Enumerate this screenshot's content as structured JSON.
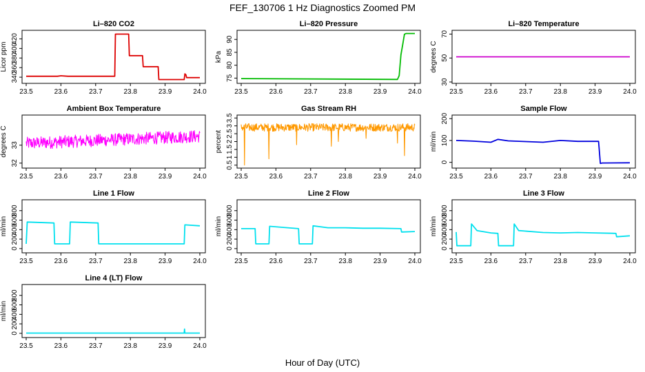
{
  "figure": {
    "title": "FEF_130706  1 Hz Diagnostics Zoomed PM",
    "xlabel": "Hour of Day (UTC)"
  },
  "chart_data": [
    {
      "id": "li820-co2",
      "type": "line",
      "title": "Li–820 CO2",
      "ylabel": "Licor ppm",
      "xlim": [
        23.5,
        24.0
      ],
      "ylim": [
        330,
        435
      ],
      "xticks": [
        "23.5",
        "23.6",
        "23.7",
        "23.8",
        "23.9",
        "24.0"
      ],
      "yticks": [
        340,
        360,
        380,
        400,
        420
      ],
      "color": "#dd0000",
      "series": [
        {
          "x": [
            23.5,
            23.59,
            23.6,
            23.62,
            23.755,
            23.757,
            23.795,
            23.797,
            23.835,
            23.837,
            23.88,
            23.882,
            23.955,
            23.957,
            23.96,
            23.962,
            24.0
          ],
          "y": [
            342,
            342,
            343,
            342,
            342,
            430,
            430,
            385,
            385,
            362,
            362,
            335,
            335,
            347,
            345,
            339,
            339
          ]
        }
      ]
    },
    {
      "id": "li820-pressure",
      "type": "line",
      "title": "Li–820 Pressure",
      "ylabel": "kPa",
      "xlim": [
        23.5,
        24.0
      ],
      "ylim": [
        73.5,
        93
      ],
      "xticks": [
        "23.5",
        "23.6",
        "23.7",
        "23.8",
        "23.9",
        "24.0"
      ],
      "yticks": [
        75,
        80,
        85,
        90
      ],
      "color": "#00bb00",
      "series": [
        {
          "x": [
            23.5,
            23.95,
            23.955,
            23.96,
            23.965,
            23.97,
            23.975,
            24.0
          ],
          "y": [
            74.8,
            74.5,
            76,
            84,
            88,
            92,
            92.3,
            92.3
          ]
        }
      ]
    },
    {
      "id": "li820-temperature",
      "type": "line",
      "title": "Li–820 Temperature",
      "ylabel": "degrees C",
      "xlim": [
        23.5,
        24.0
      ],
      "ylim": [
        30,
        72
      ],
      "xticks": [
        "23.5",
        "23.6",
        "23.7",
        "23.8",
        "23.9",
        "24.0"
      ],
      "yticks": [
        30,
        50,
        70
      ],
      "color": "#cc00cc",
      "series": [
        {
          "x": [
            23.5,
            24.0
          ],
          "y": [
            51,
            51
          ]
        }
      ]
    },
    {
      "id": "ambient-box-temperature",
      "type": "line",
      "title": "Ambient Box Temperature",
      "ylabel": "degrees C",
      "xlim": [
        23.5,
        24.0
      ],
      "ylim": [
        31.8,
        34.6
      ],
      "xticks": [
        "23.5",
        "23.6",
        "23.7",
        "23.8",
        "23.9",
        "24.0"
      ],
      "yticks": [
        32.0,
        33.0
      ],
      "color": "#ff00ff",
      "series": [
        {
          "x": [
            23.5,
            24.0
          ],
          "y": [
            33.1,
            33.5
          ]
        }
      ],
      "noise": 0.35
    },
    {
      "id": "gas-stream-rh",
      "type": "line",
      "title": "Gas Stream RH",
      "ylabel": "percent",
      "xlim": [
        23.5,
        24.0
      ],
      "ylim": [
        0.4,
        3.6
      ],
      "xticks": [
        "23.5",
        "23.6",
        "23.7",
        "23.8",
        "23.9",
        "24.0"
      ],
      "yticks": [
        0.5,
        1.0,
        1.5,
        2.0,
        2.5,
        3.0,
        3.5
      ],
      "color": "#ff9900",
      "series": [
        {
          "x": [
            23.5,
            24.0
          ],
          "y": [
            2.9,
            2.9
          ]
        }
      ],
      "noise": 0.25,
      "dips": [
        {
          "x": 23.51,
          "y": 0.5
        },
        {
          "x": 23.58,
          "y": 0.9
        },
        {
          "x": 23.66,
          "y": 1.8
        },
        {
          "x": 23.76,
          "y": 1.7
        },
        {
          "x": 23.78,
          "y": 2.0
        },
        {
          "x": 23.86,
          "y": 2.2
        },
        {
          "x": 23.95,
          "y": 1.9
        },
        {
          "x": 23.97,
          "y": 1.1
        }
      ]
    },
    {
      "id": "sample-flow",
      "type": "line",
      "title": "Sample Flow",
      "ylabel": "ml/min",
      "xlim": [
        23.5,
        24.0
      ],
      "ylim": [
        -20,
        210
      ],
      "xticks": [
        "23.5",
        "23.6",
        "23.7",
        "23.8",
        "23.9",
        "24.0"
      ],
      "yticks": [
        0,
        100,
        200
      ],
      "color": "#0000dd",
      "series": [
        {
          "x": [
            23.5,
            23.55,
            23.6,
            23.62,
            23.65,
            23.7,
            23.75,
            23.8,
            23.85,
            23.91,
            23.915,
            23.92,
            24.0
          ],
          "y": [
            100,
            97,
            92,
            105,
            98,
            95,
            92,
            100,
            96,
            96,
            -5,
            -3,
            -2
          ]
        }
      ]
    },
    {
      "id": "line1-flow",
      "type": "line",
      "title": "Line 1 Flow",
      "ylabel": "ml/min",
      "xlim": [
        23.5,
        24.0
      ],
      "ylim": [
        -60,
        1000
      ],
      "xticks": [
        "23.5",
        "23.6",
        "23.7",
        "23.8",
        "23.9",
        "24.0"
      ],
      "yticks": [
        0,
        200,
        400,
        600,
        800
      ],
      "color": "#00e0ee",
      "series": [
        {
          "x": [
            23.5,
            23.503,
            23.58,
            23.582,
            23.625,
            23.627,
            23.707,
            23.709,
            23.955,
            23.957,
            24.0
          ],
          "y": [
            100,
            560,
            540,
            100,
            100,
            560,
            540,
            100,
            100,
            500,
            480
          ]
        }
      ]
    },
    {
      "id": "line2-flow",
      "type": "line",
      "title": "Line 2 Flow",
      "ylabel": "ml/min",
      "xlim": [
        23.5,
        24.0
      ],
      "ylim": [
        -60,
        1000
      ],
      "xticks": [
        "23.5",
        "23.6",
        "23.7",
        "23.8",
        "23.9",
        "24.0"
      ],
      "yticks": [
        0,
        200,
        400,
        600,
        800
      ],
      "color": "#00e0ee",
      "series": [
        {
          "x": [
            23.5,
            23.54,
            23.542,
            23.58,
            23.582,
            23.665,
            23.667,
            23.705,
            23.707,
            23.75,
            23.8,
            23.85,
            23.9,
            23.96,
            23.962,
            24.0
          ],
          "y": [
            420,
            420,
            100,
            100,
            470,
            420,
            100,
            100,
            480,
            440,
            440,
            430,
            430,
            420,
            350,
            360
          ]
        }
      ]
    },
    {
      "id": "line3-flow",
      "type": "line",
      "title": "Line 3 Flow",
      "ylabel": "ml/min",
      "xlim": [
        23.5,
        24.0
      ],
      "ylim": [
        -60,
        1000
      ],
      "xticks": [
        "23.5",
        "23.6",
        "23.7",
        "23.8",
        "23.9",
        "24.0"
      ],
      "yticks": [
        0,
        200,
        400,
        600,
        800
      ],
      "color": "#00e0ee",
      "series": [
        {
          "x": [
            23.5,
            23.502,
            23.542,
            23.544,
            23.56,
            23.6,
            23.62,
            23.622,
            23.665,
            23.667,
            23.68,
            23.75,
            23.8,
            23.85,
            23.9,
            23.96,
            23.962,
            24.0
          ],
          "y": [
            350,
            60,
            60,
            520,
            380,
            330,
            320,
            60,
            60,
            520,
            380,
            340,
            330,
            340,
            330,
            320,
            250,
            270
          ]
        }
      ]
    },
    {
      "id": "line4-flow",
      "type": "line",
      "title": "Line 4 (LT) Flow",
      "ylabel": "ml/min",
      "xlim": [
        23.5,
        24.0
      ],
      "ylim": [
        -60,
        1000
      ],
      "xticks": [
        "23.5",
        "23.6",
        "23.7",
        "23.8",
        "23.9",
        "24.0"
      ],
      "yticks": [
        0,
        200,
        400,
        600,
        800
      ],
      "color": "#00e0ee",
      "series": [
        {
          "x": [
            23.5,
            23.955,
            23.956,
            23.957,
            24.0
          ],
          "y": [
            5,
            5,
            90,
            5,
            5
          ]
        }
      ]
    }
  ]
}
